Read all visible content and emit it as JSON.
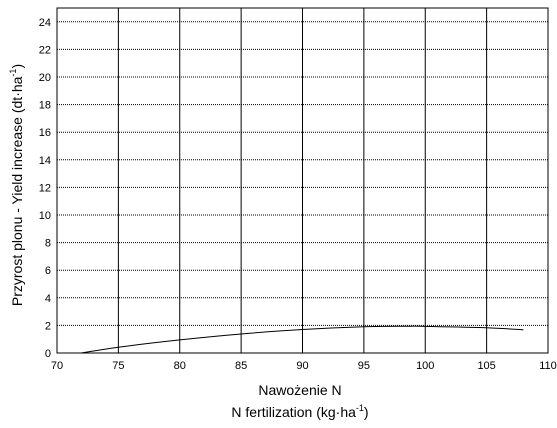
{
  "chart_data": {
    "type": "line",
    "title": "",
    "xlabel_line1": "Nawożenie N",
    "xlabel_line2_main": "N fertilization (kg·ha",
    "xlabel_line2_sup": "-1",
    "xlabel_line2_end": ")",
    "ylabel_main": "Przyrost plonu - Yield increase (dt·ha",
    "ylabel_sup": "-1",
    "ylabel_end": ")",
    "xlim": [
      70,
      110
    ],
    "ylim": [
      0,
      25
    ],
    "x_ticks": [
      70,
      75,
      80,
      85,
      90,
      95,
      100,
      105,
      110
    ],
    "y_ticks": [
      0,
      2,
      4,
      6,
      8,
      10,
      12,
      14,
      16,
      18,
      20,
      22,
      24
    ],
    "x_tick_labels": [
      "70",
      "75",
      "80",
      "85",
      "90",
      "95",
      "100",
      "105",
      "110"
    ],
    "y_tick_labels": [
      "0",
      "2",
      "4",
      "6",
      "8",
      "10",
      "12",
      "14",
      "16",
      "18",
      "20",
      "22",
      "24"
    ],
    "grid": true,
    "legend": "none",
    "line_color": "#000000",
    "series": [
      {
        "x": [
          72,
          75,
          80,
          85,
          90,
          95,
          98.5,
          100,
          105,
          108
        ],
        "y": [
          0.0,
          0.42,
          0.95,
          1.38,
          1.7,
          1.9,
          1.94,
          1.93,
          1.83,
          1.68
        ]
      }
    ]
  }
}
